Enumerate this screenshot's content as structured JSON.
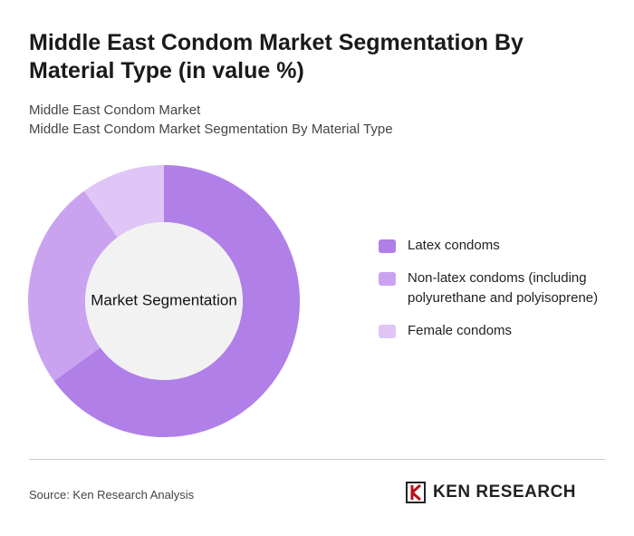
{
  "chart_data": {
    "type": "pie",
    "title": "Middle East Condom Market Segmentation By Material Type (in value %)",
    "subtitle": [
      "Middle East Condom Market",
      "Middle East Condom Market Segmentation By Material Type"
    ],
    "center_label": "Market Segmentation",
    "categories": [
      "Latex condoms",
      "Non-latex condoms (including polyurethane and polyisoprene)",
      "Female condoms"
    ],
    "values": [
      65,
      25,
      10
    ],
    "colors": [
      "#b07fe8",
      "#c9a3f0",
      "#dfc6f6"
    ],
    "source": "Source: Ken Research Analysis",
    "logo": "KEN RESEARCH"
  }
}
